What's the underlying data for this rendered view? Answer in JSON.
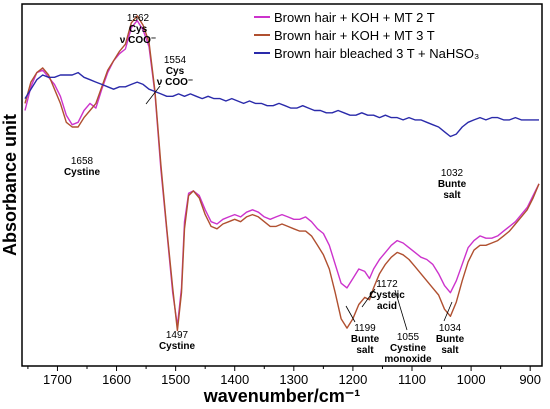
{
  "chart_data": {
    "type": "line",
    "xlabel": "wavenumber/cm⁻¹",
    "ylabel": "Absorbance unit",
    "x_reversed": true,
    "xlim": [
      1760,
      880
    ],
    "x_ticks": [
      1700,
      1600,
      1500,
      1400,
      1300,
      1200,
      1100,
      1000,
      900
    ],
    "y_ticks_shown": false,
    "grid": false,
    "legend_position": "top-right",
    "series": [
      {
        "name": "Brown hair + KOH + MT 2 T",
        "color": "#cc33cc",
        "points": [
          [
            1755,
            0.55
          ],
          [
            1745,
            0.65
          ],
          [
            1735,
            0.71
          ],
          [
            1725,
            0.72
          ],
          [
            1715,
            0.69
          ],
          [
            1705,
            0.66
          ],
          [
            1695,
            0.61
          ],
          [
            1685,
            0.53
          ],
          [
            1675,
            0.49
          ],
          [
            1665,
            0.5
          ],
          [
            1655,
            0.55
          ],
          [
            1645,
            0.58
          ],
          [
            1635,
            0.56
          ],
          [
            1625,
            0.64
          ],
          [
            1615,
            0.71
          ],
          [
            1605,
            0.76
          ],
          [
            1595,
            0.79
          ],
          [
            1585,
            0.81
          ],
          [
            1575,
            0.9
          ],
          [
            1565,
            0.93
          ],
          [
            1555,
            0.89
          ],
          [
            1545,
            0.82
          ],
          [
            1535,
            0.62
          ],
          [
            1525,
            0.3
          ],
          [
            1515,
            0.04
          ],
          [
            1505,
            -0.22
          ],
          [
            1497,
            -0.36
          ],
          [
            1490,
            -0.2
          ],
          [
            1485,
            0.08
          ],
          [
            1478,
            0.2
          ],
          [
            1470,
            0.21
          ],
          [
            1460,
            0.19
          ],
          [
            1450,
            0.13
          ],
          [
            1440,
            0.08
          ],
          [
            1430,
            0.07
          ],
          [
            1420,
            0.09
          ],
          [
            1410,
            0.1
          ],
          [
            1400,
            0.11
          ],
          [
            1390,
            0.1
          ],
          [
            1380,
            0.12
          ],
          [
            1370,
            0.13
          ],
          [
            1360,
            0.12
          ],
          [
            1350,
            0.1
          ],
          [
            1340,
            0.09
          ],
          [
            1330,
            0.1
          ],
          [
            1320,
            0.11
          ],
          [
            1310,
            0.1
          ],
          [
            1300,
            0.09
          ],
          [
            1290,
            0.09
          ],
          [
            1280,
            0.1
          ],
          [
            1270,
            0.08
          ],
          [
            1260,
            0.05
          ],
          [
            1250,
            0.03
          ],
          [
            1240,
            -0.02
          ],
          [
            1230,
            -0.1
          ],
          [
            1220,
            -0.18
          ],
          [
            1210,
            -0.2
          ],
          [
            1200,
            -0.16
          ],
          [
            1190,
            -0.12
          ],
          [
            1180,
            -0.13
          ],
          [
            1172,
            -0.16
          ],
          [
            1165,
            -0.12
          ],
          [
            1155,
            -0.08
          ],
          [
            1145,
            -0.05
          ],
          [
            1135,
            -0.02
          ],
          [
            1125,
            0.0
          ],
          [
            1115,
            -0.01
          ],
          [
            1105,
            -0.03
          ],
          [
            1095,
            -0.05
          ],
          [
            1085,
            -0.07
          ],
          [
            1075,
            -0.08
          ],
          [
            1065,
            -0.1
          ],
          [
            1055,
            -0.14
          ],
          [
            1045,
            -0.19
          ],
          [
            1035,
            -0.22
          ],
          [
            1025,
            -0.17
          ],
          [
            1015,
            -0.1
          ],
          [
            1005,
            -0.03
          ],
          [
            995,
            0.0
          ],
          [
            985,
            0.02
          ],
          [
            975,
            0.01
          ],
          [
            965,
            0.01
          ],
          [
            955,
            0.02
          ],
          [
            945,
            0.04
          ],
          [
            935,
            0.06
          ],
          [
            925,
            0.08
          ],
          [
            915,
            0.11
          ],
          [
            905,
            0.14
          ],
          [
            895,
            0.19
          ],
          [
            885,
            0.24
          ]
        ]
      },
      {
        "name": "Brown hair + KOH + MT 3 T",
        "color": "#b05030",
        "points": [
          [
            1755,
            0.58
          ],
          [
            1745,
            0.67
          ],
          [
            1735,
            0.71
          ],
          [
            1725,
            0.73
          ],
          [
            1715,
            0.7
          ],
          [
            1705,
            0.64
          ],
          [
            1695,
            0.58
          ],
          [
            1685,
            0.5
          ],
          [
            1675,
            0.48
          ],
          [
            1665,
            0.48
          ],
          [
            1655,
            0.52
          ],
          [
            1645,
            0.55
          ],
          [
            1635,
            0.58
          ],
          [
            1625,
            0.65
          ],
          [
            1615,
            0.72
          ],
          [
            1605,
            0.76
          ],
          [
            1595,
            0.8
          ],
          [
            1585,
            0.83
          ],
          [
            1575,
            0.92
          ],
          [
            1565,
            0.95
          ],
          [
            1555,
            0.91
          ],
          [
            1545,
            0.84
          ],
          [
            1535,
            0.63
          ],
          [
            1525,
            0.32
          ],
          [
            1515,
            0.05
          ],
          [
            1505,
            -0.2
          ],
          [
            1497,
            -0.38
          ],
          [
            1490,
            -0.22
          ],
          [
            1485,
            0.05
          ],
          [
            1478,
            0.19
          ],
          [
            1470,
            0.21
          ],
          [
            1460,
            0.18
          ],
          [
            1450,
            0.11
          ],
          [
            1440,
            0.06
          ],
          [
            1430,
            0.05
          ],
          [
            1420,
            0.07
          ],
          [
            1410,
            0.08
          ],
          [
            1400,
            0.09
          ],
          [
            1390,
            0.08
          ],
          [
            1380,
            0.1
          ],
          [
            1370,
            0.11
          ],
          [
            1360,
            0.1
          ],
          [
            1350,
            0.08
          ],
          [
            1340,
            0.06
          ],
          [
            1330,
            0.06
          ],
          [
            1320,
            0.07
          ],
          [
            1310,
            0.06
          ],
          [
            1300,
            0.05
          ],
          [
            1290,
            0.04
          ],
          [
            1280,
            0.04
          ],
          [
            1270,
            0.02
          ],
          [
            1260,
            -0.02
          ],
          [
            1250,
            -0.06
          ],
          [
            1240,
            -0.12
          ],
          [
            1230,
            -0.22
          ],
          [
            1220,
            -0.33
          ],
          [
            1210,
            -0.37
          ],
          [
            1200,
            -0.33
          ],
          [
            1190,
            -0.27
          ],
          [
            1180,
            -0.24
          ],
          [
            1172,
            -0.25
          ],
          [
            1165,
            -0.2
          ],
          [
            1155,
            -0.14
          ],
          [
            1145,
            -0.1
          ],
          [
            1135,
            -0.07
          ],
          [
            1125,
            -0.05
          ],
          [
            1115,
            -0.06
          ],
          [
            1105,
            -0.08
          ],
          [
            1095,
            -0.11
          ],
          [
            1085,
            -0.14
          ],
          [
            1075,
            -0.17
          ],
          [
            1065,
            -0.2
          ],
          [
            1055,
            -0.23
          ],
          [
            1045,
            -0.29
          ],
          [
            1035,
            -0.32
          ],
          [
            1025,
            -0.26
          ],
          [
            1015,
            -0.17
          ],
          [
            1005,
            -0.09
          ],
          [
            995,
            -0.04
          ],
          [
            985,
            -0.02
          ],
          [
            975,
            -0.02
          ],
          [
            965,
            -0.01
          ],
          [
            955,
            0.0
          ],
          [
            945,
            0.02
          ],
          [
            935,
            0.04
          ],
          [
            925,
            0.07
          ],
          [
            915,
            0.1
          ],
          [
            905,
            0.13
          ],
          [
            895,
            0.18
          ],
          [
            885,
            0.24
          ]
        ]
      },
      {
        "name": "Brown hair bleached 3 T + NaHSO₃",
        "color": "#2a2aaa",
        "points": [
          [
            1755,
            0.6
          ],
          [
            1745,
            0.64
          ],
          [
            1735,
            0.68
          ],
          [
            1725,
            0.7
          ],
          [
            1715,
            0.69
          ],
          [
            1705,
            0.69
          ],
          [
            1695,
            0.7
          ],
          [
            1685,
            0.7
          ],
          [
            1675,
            0.7
          ],
          [
            1665,
            0.71
          ],
          [
            1655,
            0.69
          ],
          [
            1645,
            0.68
          ],
          [
            1635,
            0.67
          ],
          [
            1625,
            0.66
          ],
          [
            1615,
            0.65
          ],
          [
            1605,
            0.64
          ],
          [
            1595,
            0.65
          ],
          [
            1585,
            0.65
          ],
          [
            1575,
            0.66
          ],
          [
            1565,
            0.67
          ],
          [
            1555,
            0.66
          ],
          [
            1545,
            0.64
          ],
          [
            1535,
            0.63
          ],
          [
            1525,
            0.62
          ],
          [
            1515,
            0.61
          ],
          [
            1505,
            0.61
          ],
          [
            1495,
            0.62
          ],
          [
            1485,
            0.61
          ],
          [
            1475,
            0.62
          ],
          [
            1465,
            0.61
          ],
          [
            1455,
            0.6
          ],
          [
            1445,
            0.61
          ],
          [
            1435,
            0.6
          ],
          [
            1425,
            0.6
          ],
          [
            1415,
            0.59
          ],
          [
            1405,
            0.6
          ],
          [
            1395,
            0.59
          ],
          [
            1385,
            0.58
          ],
          [
            1375,
            0.59
          ],
          [
            1365,
            0.58
          ],
          [
            1355,
            0.58
          ],
          [
            1345,
            0.57
          ],
          [
            1335,
            0.57
          ],
          [
            1325,
            0.58
          ],
          [
            1315,
            0.57
          ],
          [
            1305,
            0.56
          ],
          [
            1295,
            0.56
          ],
          [
            1285,
            0.57
          ],
          [
            1275,
            0.56
          ],
          [
            1265,
            0.55
          ],
          [
            1255,
            0.55
          ],
          [
            1245,
            0.54
          ],
          [
            1235,
            0.54
          ],
          [
            1225,
            0.55
          ],
          [
            1215,
            0.54
          ],
          [
            1205,
            0.53
          ],
          [
            1195,
            0.53
          ],
          [
            1185,
            0.54
          ],
          [
            1175,
            0.53
          ],
          [
            1165,
            0.53
          ],
          [
            1155,
            0.52
          ],
          [
            1145,
            0.53
          ],
          [
            1135,
            0.52
          ],
          [
            1125,
            0.52
          ],
          [
            1115,
            0.51
          ],
          [
            1105,
            0.52
          ],
          [
            1095,
            0.51
          ],
          [
            1085,
            0.51
          ],
          [
            1075,
            0.5
          ],
          [
            1065,
            0.49
          ],
          [
            1055,
            0.48
          ],
          [
            1045,
            0.46
          ],
          [
            1035,
            0.44
          ],
          [
            1025,
            0.45
          ],
          [
            1015,
            0.48
          ],
          [
            1005,
            0.5
          ],
          [
            995,
            0.51
          ],
          [
            985,
            0.52
          ],
          [
            975,
            0.51
          ],
          [
            965,
            0.52
          ],
          [
            955,
            0.52
          ],
          [
            945,
            0.51
          ],
          [
            935,
            0.51
          ],
          [
            925,
            0.52
          ],
          [
            915,
            0.51
          ],
          [
            905,
            0.51
          ],
          [
            895,
            0.51
          ],
          [
            885,
            0.51
          ]
        ]
      }
    ],
    "annotations": [
      {
        "x": 1562,
        "y": 0.95,
        "number": "1562",
        "lines": [
          "Cys",
          "ν COO⁻"
        ]
      },
      {
        "x": 1554,
        "y": 0.78,
        "number": "1554",
        "lines": [
          "Cys",
          "ν COO⁻"
        ]
      },
      {
        "x": 1658,
        "y": 0.48,
        "number": "1658",
        "lines": [
          "Cystine"
        ]
      },
      {
        "x": 1032,
        "y": 0.44,
        "number": "1032",
        "lines": [
          "Bunte",
          "salt"
        ]
      },
      {
        "x": 1497,
        "y": -0.38,
        "number": "1497",
        "lines": [
          "Cystine"
        ]
      },
      {
        "x": 1172,
        "y": -0.25,
        "number": "1172",
        "lines": [
          "Cysteic",
          "acid"
        ]
      },
      {
        "x": 1199,
        "y": -0.35,
        "number": "1199",
        "lines": [
          "Bunte",
          "salt"
        ]
      },
      {
        "x": 1055,
        "y": -0.23,
        "number": "1055",
        "lines": [
          "Cystine",
          "monoxide"
        ]
      },
      {
        "x": 1034,
        "y": -0.32,
        "number": "1034",
        "lines": [
          "Bunte",
          "salt"
        ]
      }
    ]
  }
}
